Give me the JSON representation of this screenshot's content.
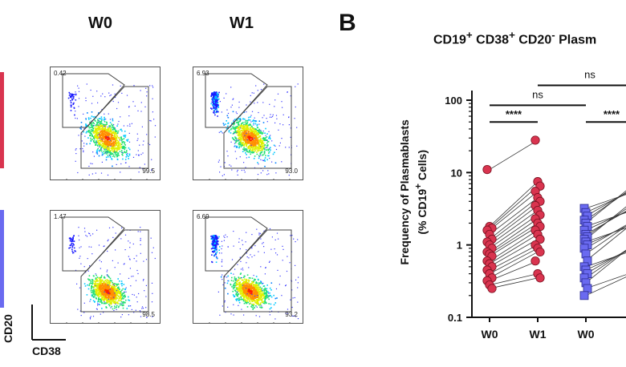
{
  "flow": {
    "col_titles": [
      "W0",
      "W1"
    ],
    "axis_y": "CD20",
    "axis_x": "CD38",
    "row_colors": [
      "#d9344f",
      "#6a6af0"
    ],
    "panels": [
      {
        "pb": "0.42",
        "b": "99.5"
      },
      {
        "pb": "6.93",
        "b": "93.0"
      },
      {
        "pb": "1.47",
        "b": "98.5"
      },
      {
        "pb": "6.69",
        "b": "93.2"
      }
    ]
  },
  "panel_b_letter": "B",
  "chart_data": {
    "type": "scatter",
    "title_parts": {
      "a": "CD19",
      "a_sup": "+",
      "b": " CD38",
      "b_sup": "+",
      "c": " CD20",
      "c_sup": "-",
      "d": " Plasm"
    },
    "ylabel_line1": "Frequency of Plasmablasts",
    "ylabel_line2_a": "(% CD19",
    "ylabel_line2_sup": "+",
    "ylabel_line2_b": " Cells)",
    "yscale": "log",
    "ylim": [
      0.1,
      100
    ],
    "yticks": [
      "0.1",
      "1",
      "10",
      "100"
    ],
    "categories": [
      "W0",
      "W1",
      "W0"
    ],
    "colors": {
      "group1": "#d9344f",
      "group2": "#6a6af0"
    },
    "series": [
      {
        "values_w0": [
          11.0,
          1.8,
          1.7,
          1.6,
          1.4,
          1.2,
          1.1,
          1.0,
          0.9,
          0.8,
          0.75,
          0.7,
          0.6,
          0.55,
          0.5,
          0.45,
          0.4,
          0.35,
          0.32,
          0.28,
          0.25
        ],
        "values_w1": [
          28.0,
          7.5,
          6.5,
          5.5,
          4.5,
          4.0,
          3.5,
          3.0,
          2.6,
          2.3,
          2.0,
          1.8,
          1.6,
          1.4,
          1.2,
          1.0,
          0.9,
          0.8,
          0.6,
          0.4,
          0.35
        ]
      },
      {
        "values_w0": [
          3.2,
          2.8,
          2.5,
          2.2,
          2.0,
          1.8,
          1.6,
          1.4,
          1.3,
          1.2,
          1.1,
          1.0,
          0.9,
          0.75,
          0.6,
          0.5,
          0.45,
          0.4,
          0.35,
          0.3,
          0.25,
          0.2
        ]
      }
    ],
    "brackets": [
      {
        "label": "****"
      },
      {
        "label": "ns"
      },
      {
        "label": "ns"
      },
      {
        "label": "****"
      }
    ]
  }
}
